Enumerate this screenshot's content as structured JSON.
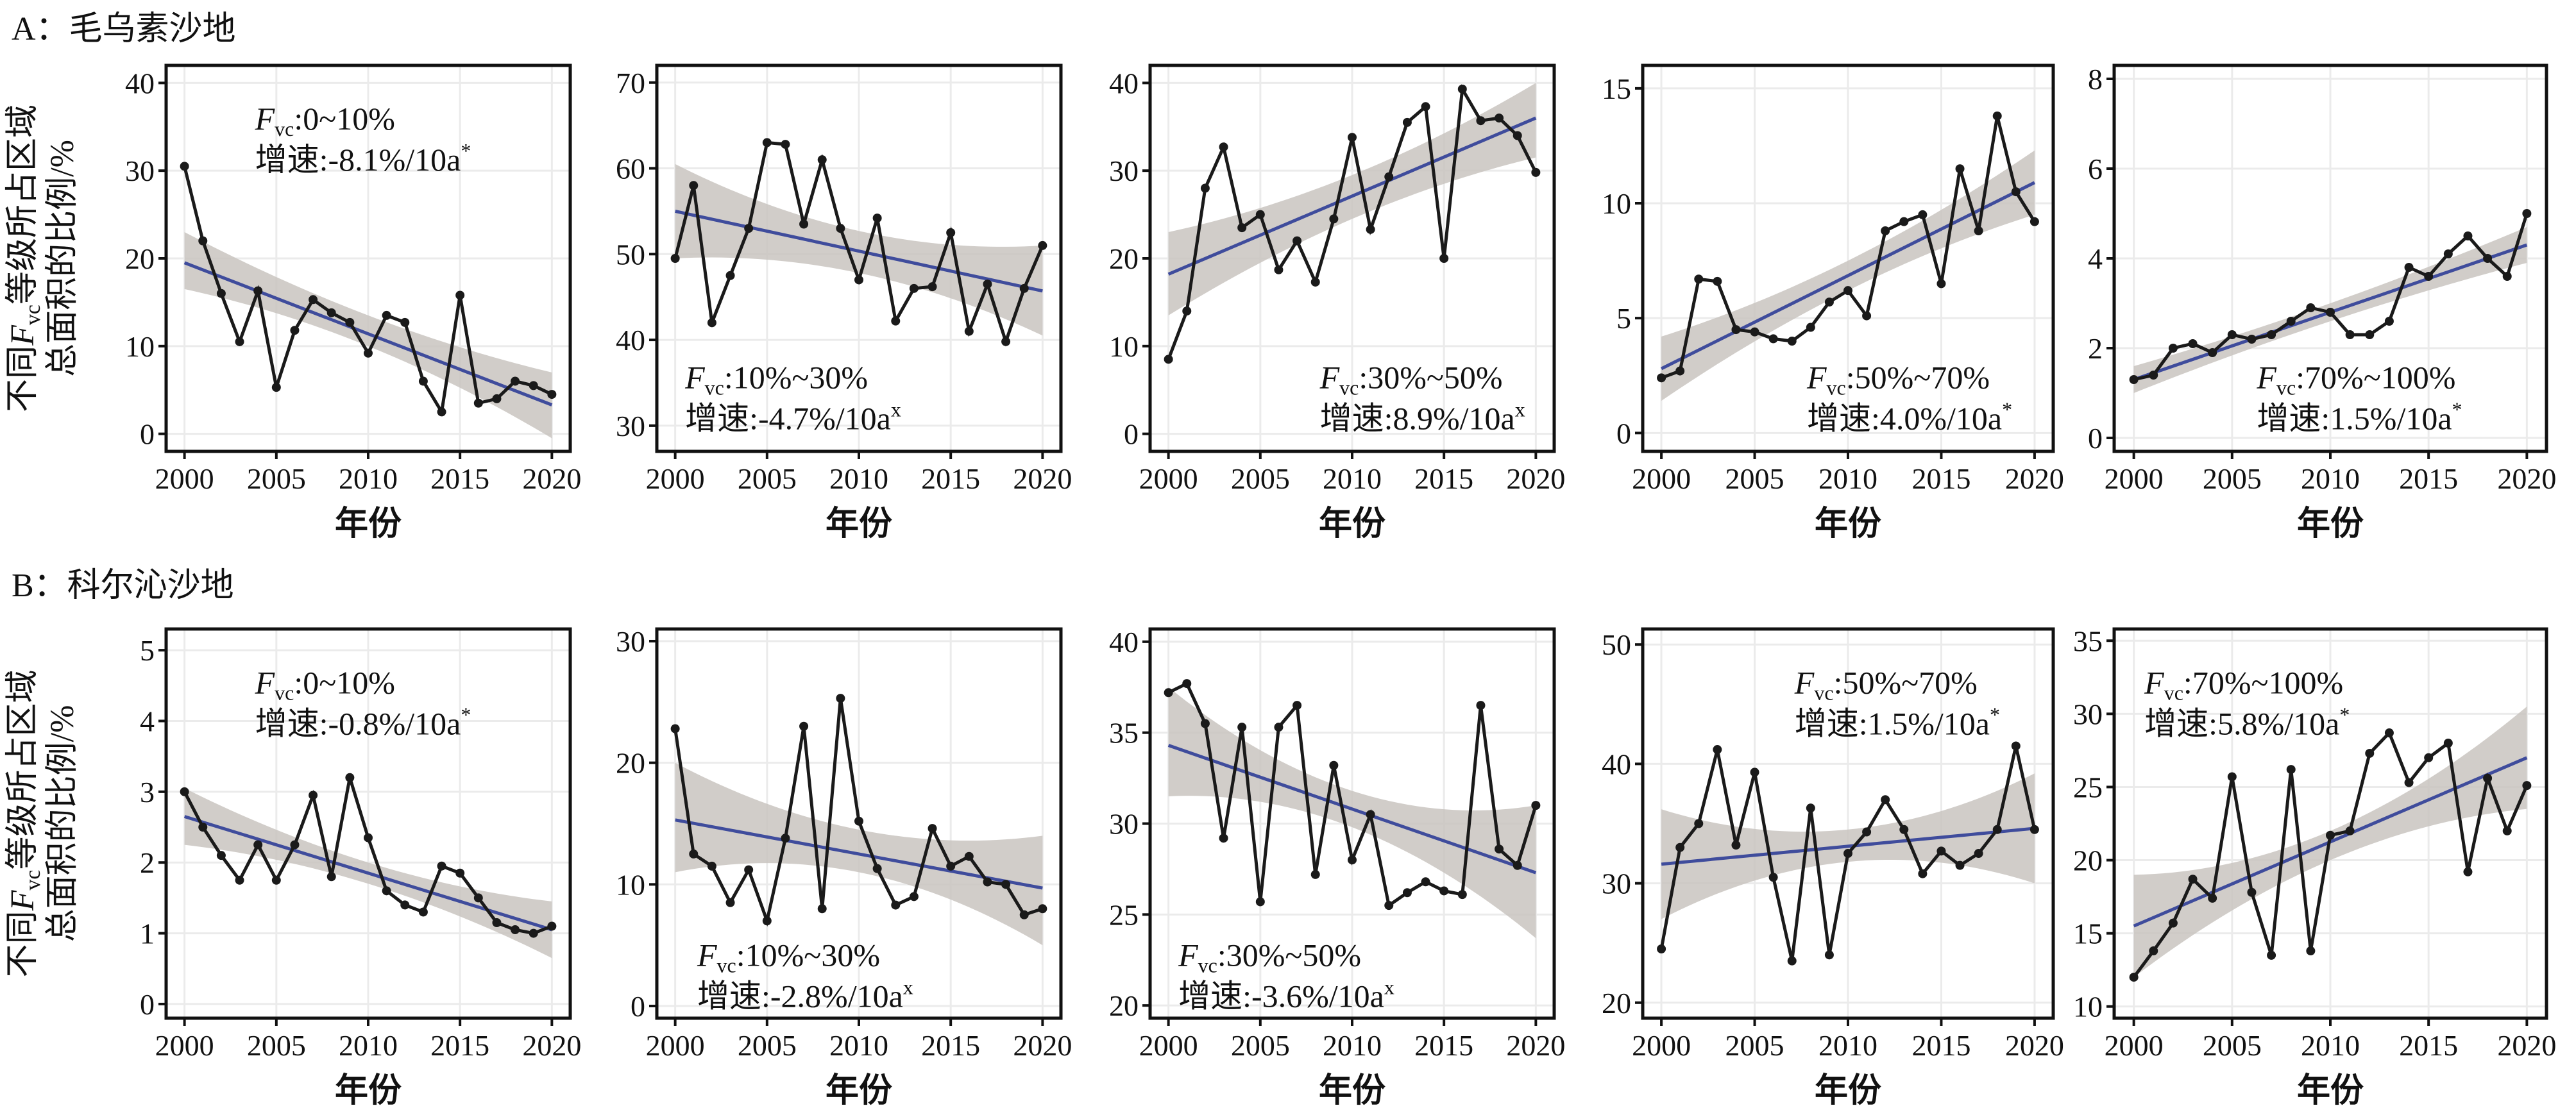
{
  "groups": [
    {
      "title": "A：毛乌素沙地"
    },
    {
      "title": "B：科尔沁沙地"
    }
  ],
  "y_label": {
    "prefix": "不同",
    "symbol": "F",
    "subscript": "vc",
    "suffix": "等级所占区域",
    "line2": "总面积的比例/%"
  },
  "chart_data": [
    {
      "type": "line",
      "x_label": "年份",
      "x": [
        2000,
        2001,
        2002,
        2003,
        2004,
        2005,
        2006,
        2007,
        2008,
        2009,
        2010,
        2011,
        2012,
        2013,
        2014,
        2015,
        2016,
        2017,
        2018,
        2019,
        2020
      ],
      "values": [
        30.5,
        22,
        16,
        10.5,
        16.3,
        5.3,
        11.8,
        15.3,
        13.8,
        12.7,
        9.2,
        13.5,
        12.7,
        6,
        2.5,
        15.8,
        3.5,
        4,
        6,
        5.5,
        4.5
      ],
      "color": "#1a1a1a",
      "xlim": [
        1999,
        2021
      ],
      "xticks": [
        2000,
        2005,
        2010,
        2015,
        2020
      ],
      "ylim": [
        -2,
        42
      ],
      "yticks": [
        0,
        10,
        20,
        30,
        40
      ],
      "grid": true,
      "trend": {
        "x": [
          2000,
          2020
        ],
        "values": [
          19.5,
          3.3
        ],
        "color": "#3f4c9c"
      },
      "band": {
        "x": [
          2000,
          2010,
          2020
        ],
        "lower": [
          16.5,
          10,
          -0.5
        ],
        "upper": [
          23,
          13.5,
          7
        ],
        "color": "#c9c4bf"
      },
      "annotation": {
        "symbol": "F",
        "subscript": "vc",
        "range": ":0~10%",
        "rate": "增速:-8.1%/10a",
        "significance": "*"
      }
    },
    {
      "type": "line",
      "x_label": "年份",
      "x": [
        2000,
        2001,
        2002,
        2003,
        2004,
        2005,
        2006,
        2007,
        2008,
        2009,
        2010,
        2011,
        2012,
        2013,
        2014,
        2015,
        2016,
        2017,
        2018,
        2019,
        2020
      ],
      "values": [
        49.5,
        58,
        42,
        47.5,
        53,
        63,
        62.8,
        53.5,
        61,
        53,
        47,
        54.2,
        42.2,
        46,
        46.2,
        52.5,
        41,
        46.5,
        39.8,
        46,
        51
      ],
      "color": "#1a1a1a",
      "xlim": [
        1999,
        2021
      ],
      "xticks": [
        2000,
        2005,
        2010,
        2015,
        2020
      ],
      "ylim": [
        27,
        72
      ],
      "yticks": [
        30,
        40,
        50,
        60,
        70
      ],
      "grid": true,
      "trend": {
        "x": [
          2000,
          2020
        ],
        "values": [
          55,
          45.7
        ],
        "color": "#3f4c9c"
      },
      "band": {
        "x": [
          2000,
          2010,
          2020
        ],
        "lower": [
          49.5,
          47.8,
          40.5
        ],
        "upper": [
          60.5,
          52.7,
          51
        ],
        "color": "#c9c4bf"
      },
      "annotation": {
        "symbol": "F",
        "subscript": "vc",
        "range": ":10%~30%",
        "rate": "增速:-4.7%/10a",
        "significance": "x"
      }
    },
    {
      "type": "line",
      "x_label": "年份",
      "x": [
        2000,
        2001,
        2002,
        2003,
        2004,
        2005,
        2006,
        2007,
        2008,
        2009,
        2010,
        2011,
        2012,
        2013,
        2014,
        2015,
        2016,
        2017,
        2018,
        2019,
        2020
      ],
      "values": [
        8.5,
        14,
        28,
        32.7,
        23.5,
        25,
        18.7,
        22,
        17.3,
        24.5,
        33.8,
        23.3,
        29.3,
        35.5,
        37.3,
        20,
        39.3,
        35.7,
        36,
        34,
        29.8
      ],
      "color": "#1a1a1a",
      "xlim": [
        1999,
        2021
      ],
      "xticks": [
        2000,
        2005,
        2010,
        2015,
        2020
      ],
      "ylim": [
        -2,
        42
      ],
      "yticks": [
        0,
        10,
        20,
        30,
        40
      ],
      "grid": true,
      "trend": {
        "x": [
          2000,
          2020
        ],
        "values": [
          18.2,
          36
        ],
        "color": "#3f4c9c"
      },
      "band": {
        "x": [
          2000,
          2010,
          2020
        ],
        "lower": [
          13.5,
          24.5,
          31.5
        ],
        "upper": [
          23,
          29.5,
          40
        ],
        "color": "#c9c4bf"
      },
      "annotation": {
        "symbol": "F",
        "subscript": "vc",
        "range": ":30%~50%",
        "rate": "增速:8.9%/10a",
        "significance": "x"
      }
    },
    {
      "type": "line",
      "x_label": "年份",
      "x": [
        2000,
        2001,
        2002,
        2003,
        2004,
        2005,
        2006,
        2007,
        2008,
        2009,
        2010,
        2011,
        2012,
        2013,
        2014,
        2015,
        2016,
        2017,
        2018,
        2019,
        2020
      ],
      "values": [
        2.4,
        2.7,
        6.7,
        6.6,
        4.5,
        4.4,
        4.1,
        4,
        4.6,
        5.7,
        6.2,
        5.1,
        8.8,
        9.2,
        9.5,
        6.5,
        11.5,
        8.8,
        13.8,
        10.5,
        9.2
      ],
      "color": "#1a1a1a",
      "xlim": [
        1999,
        2021
      ],
      "xticks": [
        2000,
        2005,
        2010,
        2015,
        2020
      ],
      "ylim": [
        -0.8,
        16
      ],
      "yticks": [
        0,
        5,
        10,
        15
      ],
      "grid": true,
      "trend": {
        "x": [
          2000,
          2020
        ],
        "values": [
          2.8,
          10.9
        ],
        "color": "#3f4c9c"
      },
      "band": {
        "x": [
          2000,
          2010,
          2020
        ],
        "lower": [
          1.4,
          6.2,
          9.5
        ],
        "upper": [
          4.2,
          7.5,
          12.3
        ],
        "color": "#c9c4bf"
      },
      "annotation": {
        "symbol": "F",
        "subscript": "vc",
        "range": ":50%~70%",
        "rate": "增速:4.0%/10a",
        "significance": "*"
      }
    },
    {
      "type": "line",
      "x_label": "年份",
      "x": [
        2000,
        2001,
        2002,
        2003,
        2004,
        2005,
        2006,
        2007,
        2008,
        2009,
        2010,
        2011,
        2012,
        2013,
        2014,
        2015,
        2016,
        2017,
        2018,
        2019,
        2020
      ],
      "values": [
        1.3,
        1.4,
        2,
        2.1,
        1.9,
        2.3,
        2.2,
        2.3,
        2.6,
        2.9,
        2.8,
        2.3,
        2.3,
        2.6,
        3.8,
        3.6,
        4.1,
        4.5,
        4,
        3.6,
        5
      ],
      "color": "#1a1a1a",
      "xlim": [
        1999,
        2021
      ],
      "xticks": [
        2000,
        2005,
        2010,
        2015,
        2020
      ],
      "ylim": [
        -0.3,
        8.3
      ],
      "yticks": [
        0,
        2,
        4,
        6,
        8
      ],
      "grid": true,
      "trend": {
        "x": [
          2000,
          2020
        ],
        "values": [
          1.3,
          4.3
        ],
        "color": "#3f4c9c"
      },
      "band": {
        "x": [
          2000,
          2010,
          2020
        ],
        "lower": [
          1.0,
          2.6,
          3.9
        ],
        "upper": [
          1.6,
          3.0,
          4.7
        ],
        "color": "#c9c4bf"
      },
      "annotation": {
        "symbol": "F",
        "subscript": "vc",
        "range": ":70%~100%",
        "rate": "增速:1.5%/10a",
        "significance": "*"
      }
    },
    {
      "type": "line",
      "x_label": "年份",
      "x": [
        2000,
        2001,
        2002,
        2003,
        2004,
        2005,
        2006,
        2007,
        2008,
        2009,
        2010,
        2011,
        2012,
        2013,
        2014,
        2015,
        2016,
        2017,
        2018,
        2019,
        2020
      ],
      "values": [
        3,
        2.5,
        2.1,
        1.75,
        2.25,
        1.75,
        2.25,
        2.95,
        1.8,
        3.2,
        2.35,
        1.6,
        1.4,
        1.3,
        1.95,
        1.85,
        1.5,
        1.15,
        1.05,
        1.0,
        1.1
      ],
      "color": "#1a1a1a",
      "xlim": [
        1999,
        2021
      ],
      "xticks": [
        2000,
        2005,
        2010,
        2015,
        2020
      ],
      "ylim": [
        -0.2,
        5.3
      ],
      "yticks": [
        0,
        1,
        2,
        3,
        4,
        5
      ],
      "grid": true,
      "trend": {
        "x": [
          2000,
          2020
        ],
        "values": [
          2.65,
          1.05
        ],
        "color": "#3f4c9c"
      },
      "band": {
        "x": [
          2000,
          2010,
          2020
        ],
        "lower": [
          2.25,
          1.7,
          0.65
        ],
        "upper": [
          3.05,
          2.0,
          1.45
        ],
        "color": "#c9c4bf"
      },
      "annotation": {
        "symbol": "F",
        "subscript": "vc",
        "range": ":0~10%",
        "rate": "增速:-0.8%/10a",
        "significance": "*"
      }
    },
    {
      "type": "line",
      "x_label": "年份",
      "x": [
        2000,
        2001,
        2002,
        2003,
        2004,
        2005,
        2006,
        2007,
        2008,
        2009,
        2010,
        2011,
        2012,
        2013,
        2014,
        2015,
        2016,
        2017,
        2018,
        2019,
        2020
      ],
      "values": [
        22.8,
        12.5,
        11.5,
        8.5,
        11.2,
        7,
        13.8,
        23,
        8,
        25.3,
        15.2,
        11.3,
        8.3,
        9,
        14.6,
        11.5,
        12.3,
        10.2,
        10,
        7.5,
        8
      ],
      "color": "#1a1a1a",
      "xlim": [
        1999,
        2021
      ],
      "xticks": [
        2000,
        2005,
        2010,
        2015,
        2020
      ],
      "ylim": [
        -1,
        31
      ],
      "yticks": [
        0,
        10,
        20,
        30
      ],
      "grid": true,
      "trend": {
        "x": [
          2000,
          2020
        ],
        "values": [
          15.3,
          9.7
        ],
        "color": "#3f4c9c"
      },
      "band": {
        "x": [
          2000,
          2010,
          2020
        ],
        "lower": [
          11,
          11,
          5
        ],
        "upper": [
          20,
          14.5,
          14
        ],
        "color": "#c9c4bf"
      },
      "annotation": {
        "symbol": "F",
        "subscript": "vc",
        "range": ":10%~30%",
        "rate": "增速:-2.8%/10a",
        "significance": "x"
      }
    },
    {
      "type": "line",
      "x_label": "年份",
      "x": [
        2000,
        2001,
        2002,
        2003,
        2004,
        2005,
        2006,
        2007,
        2008,
        2009,
        2010,
        2011,
        2012,
        2013,
        2014,
        2015,
        2016,
        2017,
        2018,
        2019,
        2020
      ],
      "values": [
        37.2,
        37.7,
        35.5,
        29.2,
        35.3,
        25.7,
        35.3,
        36.5,
        27.2,
        33.2,
        28,
        30.5,
        25.5,
        26.2,
        26.8,
        26.3,
        26.1,
        36.5,
        28.6,
        27.7,
        31
      ],
      "color": "#1a1a1a",
      "xlim": [
        1999,
        2021
      ],
      "xticks": [
        2000,
        2005,
        2010,
        2015,
        2020
      ],
      "ylim": [
        19.3,
        40.7
      ],
      "yticks": [
        20,
        25,
        30,
        35,
        40
      ],
      "grid": true,
      "trend": {
        "x": [
          2000,
          2020
        ],
        "values": [
          34.3,
          27.3
        ],
        "color": "#3f4c9c"
      },
      "band": {
        "x": [
          2000,
          2010,
          2020
        ],
        "lower": [
          31.5,
          29.8,
          23.7
        ],
        "upper": [
          37.5,
          31.8,
          31
        ],
        "color": "#c9c4bf"
      },
      "annotation": {
        "symbol": "F",
        "subscript": "vc",
        "range": ":30%~50%",
        "rate": "增速:-3.6%/10a",
        "significance": "x"
      }
    },
    {
      "type": "line",
      "x_label": "年份",
      "x": [
        2000,
        2001,
        2002,
        2003,
        2004,
        2005,
        2006,
        2007,
        2008,
        2009,
        2010,
        2011,
        2012,
        2013,
        2014,
        2015,
        2016,
        2017,
        2018,
        2019,
        2020
      ],
      "values": [
        24.5,
        33,
        35,
        41.2,
        33.2,
        39.3,
        30.5,
        23.5,
        36.3,
        24,
        32.5,
        34.3,
        37,
        34.5,
        30.8,
        32.7,
        31.5,
        32.5,
        34.5,
        41.5,
        34.5
      ],
      "color": "#1a1a1a",
      "xlim": [
        1999,
        2021
      ],
      "xticks": [
        2000,
        2005,
        2010,
        2015,
        2020
      ],
      "ylim": [
        18.7,
        51.3
      ],
      "yticks": [
        20,
        30,
        40,
        50
      ],
      "grid": true,
      "trend": {
        "x": [
          2000,
          2020
        ],
        "values": [
          31.6,
          34.6
        ],
        "color": "#3f4c9c"
      },
      "band": {
        "x": [
          2000,
          2010,
          2020
        ],
        "lower": [
          27,
          31.8,
          30
        ],
        "upper": [
          36.2,
          34.5,
          39.2
        ],
        "color": "#c9c4bf"
      },
      "annotation": {
        "symbol": "F",
        "subscript": "vc",
        "range": ":50%~70%",
        "rate": "增速:1.5%/10a",
        "significance": "*"
      }
    },
    {
      "type": "line",
      "x_label": "年份",
      "x": [
        2000,
        2001,
        2002,
        2003,
        2004,
        2005,
        2006,
        2007,
        2008,
        2009,
        2010,
        2011,
        2012,
        2013,
        2014,
        2015,
        2016,
        2017,
        2018,
        2019,
        2020
      ],
      "values": [
        12,
        13.8,
        15.7,
        18.7,
        17.4,
        25.7,
        17.8,
        13.5,
        26.2,
        13.8,
        21.7,
        22,
        27.3,
        28.7,
        25.3,
        27,
        28,
        19.2,
        25.6,
        22,
        25.1
      ],
      "color": "#1a1a1a",
      "xlim": [
        1999,
        2021
      ],
      "xticks": [
        2000,
        2005,
        2010,
        2015,
        2020
      ],
      "ylim": [
        9.2,
        35.8
      ],
      "yticks": [
        10,
        15,
        20,
        25,
        30,
        35
      ],
      "grid": true,
      "trend": {
        "x": [
          2000,
          2020
        ],
        "values": [
          15.5,
          27
        ],
        "color": "#3f4c9c"
      },
      "band": {
        "x": [
          2000,
          2010,
          2020
        ],
        "lower": [
          12,
          20,
          23.5
        ],
        "upper": [
          19,
          22,
          30.5
        ],
        "color": "#c9c4bf"
      },
      "annotation": {
        "symbol": "F",
        "subscript": "vc",
        "range": ":70%~100%",
        "rate": "增速:5.8%/10a",
        "significance": "*"
      }
    }
  ]
}
